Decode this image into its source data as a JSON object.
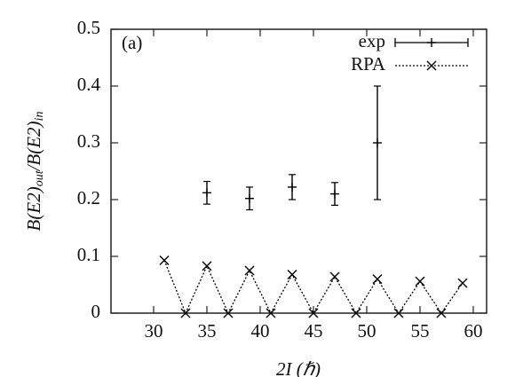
{
  "chart_data": {
    "type": "line",
    "panel_label": "(a)",
    "xlabel": "2I (ℏ)",
    "ylabel": [
      "B(E2)",
      "out",
      "/B(E2)",
      "in"
    ],
    "xlim": [
      26,
      61.25
    ],
    "xticks": [
      30,
      35,
      40,
      45,
      50,
      55,
      60
    ],
    "ylim": [
      0,
      0.5
    ],
    "yticks": [
      0,
      0.1,
      0.2,
      0.3,
      0.4,
      0.5
    ],
    "legend": "upper right",
    "series": [
      {
        "name": "exp",
        "color": "#000000",
        "marker": "+",
        "linestyle": "none",
        "x": [
          35,
          39,
          43,
          47,
          51
        ],
        "values": [
          0.212,
          0.202,
          0.222,
          0.21,
          0.3
        ],
        "errors": [
          0.02,
          0.02,
          0.022,
          0.02,
          0.1
        ]
      },
      {
        "name": "RPA",
        "color": "#000000",
        "marker": "x",
        "linestyle": "dotted",
        "x": [
          31,
          33,
          35,
          37,
          39,
          41,
          43,
          45,
          47,
          49,
          51,
          53,
          55,
          57,
          59
        ],
        "values": [
          0.093,
          0,
          0.083,
          0,
          0.075,
          0,
          0.068,
          0,
          0.064,
          0,
          0.06,
          0,
          0.056,
          0,
          0.053
        ]
      }
    ]
  }
}
